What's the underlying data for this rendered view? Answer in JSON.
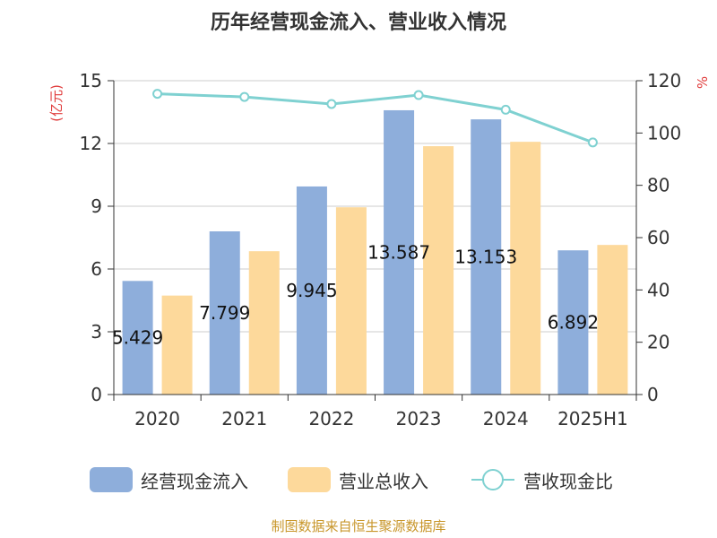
{
  "chart_data": {
    "type": "bar",
    "title": "历年经营现金流入、营业收入情况",
    "categories": [
      "2020",
      "2021",
      "2022",
      "2023",
      "2024",
      "2025H1"
    ],
    "series": [
      {
        "name": "经营现金流入",
        "type": "bar",
        "axis": "left",
        "values": [
          5.429,
          7.799,
          9.945,
          13.587,
          13.153,
          6.892
        ],
        "data_labels": [
          "5.429",
          "7.799",
          "9.945",
          "13.587",
          "13.153",
          "6.892"
        ]
      },
      {
        "name": "营业总收入",
        "type": "bar",
        "axis": "left",
        "values": [
          4.73,
          6.85,
          8.95,
          11.87,
          12.08,
          7.15
        ]
      },
      {
        "name": "营收现金比",
        "type": "line",
        "axis": "right",
        "values": [
          115.0,
          113.8,
          111.1,
          114.5,
          108.9,
          96.4
        ]
      }
    ],
    "y_left": {
      "unit": "(亿元)",
      "ylim": [
        0,
        15
      ],
      "ticks": [
        "0",
        "3",
        "6",
        "9",
        "12",
        "15"
      ]
    },
    "y_right": {
      "unit": "%",
      "ylim": [
        0,
        120
      ],
      "ticks": [
        "0",
        "20",
        "40",
        "60",
        "80",
        "100",
        "120"
      ]
    },
    "grid": true,
    "legend_position": "bottom"
  },
  "colors": {
    "bar_cash": "#8eaedb",
    "bar_revenue": "#fdd99b",
    "line_ratio": "#7fd1d1",
    "unit_red": "#e03c3c",
    "source_gold": "#c8962a",
    "grid": "#cccccc",
    "axis": "#333333"
  },
  "source_text": "制图数据来自恒生聚源数据库"
}
